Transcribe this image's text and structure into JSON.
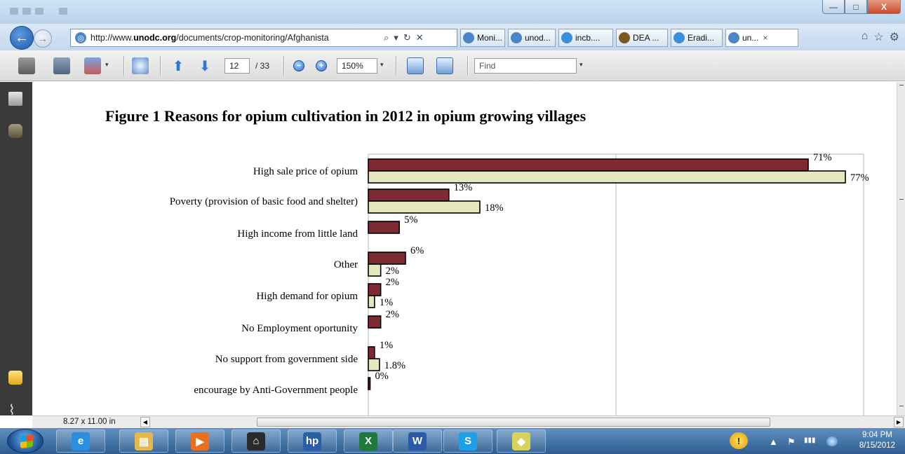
{
  "browser": {
    "address_url_prefix": "http://www.",
    "address_url_domain": "unodc.org",
    "address_url_rest": "/documents/crop-monitoring/Afghanista",
    "search_glyph": "⌕",
    "dropdown_glyph": "▾",
    "refresh_glyph": "↻",
    "stop_glyph": "✕",
    "tabs": [
      {
        "label": "Moni...",
        "icon": "ie-globe-icon",
        "color": "#4a86c8",
        "active": false
      },
      {
        "label": "unod...",
        "icon": "ie-globe-icon",
        "color": "#4a86c8",
        "active": false
      },
      {
        "label": "incb....",
        "icon": "ie-logo-icon",
        "color": "#3a8fd8",
        "active": false
      },
      {
        "label": "DEA ...",
        "icon": "dea-icon",
        "color": "#7a5a1c",
        "active": false
      },
      {
        "label": "Eradi...",
        "icon": "ie-logo-icon",
        "color": "#3a8fd8",
        "active": false
      },
      {
        "label": "un...",
        "icon": "ie-globe-icon",
        "color": "#4a86c8",
        "active": true
      }
    ],
    "tab_close_glyph": "×",
    "window_controls": {
      "minimize": "—",
      "maximize": "□",
      "close": "X"
    },
    "nav_icons": {
      "home": "⌂",
      "favorites": "☆",
      "tools": "⚙"
    }
  },
  "pdf_toolbar": {
    "page_current": "12",
    "page_total": "/ 33",
    "zoom": "150%",
    "find_placeholder": "Find",
    "dropdown_glyph": "▾"
  },
  "document": {
    "figure_title": "Figure 1   Reasons for opium cultivation in 2012 in opium growing villages",
    "page_size": "8.27 x 11.00 in"
  },
  "chart_data": {
    "type": "bar",
    "orientation": "horizontal",
    "categories": [
      "High sale price of opium",
      "Poverty (provision of basic food and shelter)",
      "High income from little land",
      "Other",
      "High demand for opium",
      "No Employment oportunity",
      "No support from government side",
      "encourage by Anti-Government people"
    ],
    "series": [
      {
        "color": "#7d2a32",
        "values": [
          71,
          13,
          5,
          6,
          2,
          2,
          1,
          0
        ],
        "labels": [
          "71%",
          "13%",
          "5%",
          "6%",
          "2%",
          "2%",
          "1%",
          "0%"
        ]
      },
      {
        "color": "#e4e8bc",
        "values": [
          77,
          18,
          null,
          2,
          1,
          null,
          1.8,
          null
        ],
        "labels": [
          "77%",
          "18%",
          "",
          "2%",
          "1%",
          "",
          "1.8%",
          ""
        ]
      }
    ],
    "xlim": [
      0,
      80
    ],
    "grid": "vertical"
  },
  "taskbar": {
    "apps": [
      {
        "name": "internet-explorer",
        "glyph": "e",
        "color": "#2b8ee0"
      },
      {
        "name": "file-explorer",
        "glyph": "▤",
        "color": "#e6b84a"
      },
      {
        "name": "media-player",
        "glyph": "▶",
        "color": "#e8701e"
      },
      {
        "name": "home-app",
        "glyph": "⌂",
        "color": "#2a2a2a"
      },
      {
        "name": "hp-app",
        "glyph": "hp",
        "color": "#2a5ea8"
      },
      {
        "name": "excel",
        "glyph": "X",
        "color": "#1e7a3a"
      },
      {
        "name": "word",
        "glyph": "W",
        "color": "#2a5aa8"
      },
      {
        "name": "skype",
        "glyph": "S",
        "color": "#1ea0e8"
      },
      {
        "name": "sticky-notes",
        "glyph": "◆",
        "color": "#d8d25a"
      }
    ],
    "clock_time": "9:04 PM",
    "clock_date": "8/15/2012",
    "tray_glyphs": {
      "expand": "▲",
      "network": "▮▮▮",
      "flag": "⚑"
    }
  }
}
